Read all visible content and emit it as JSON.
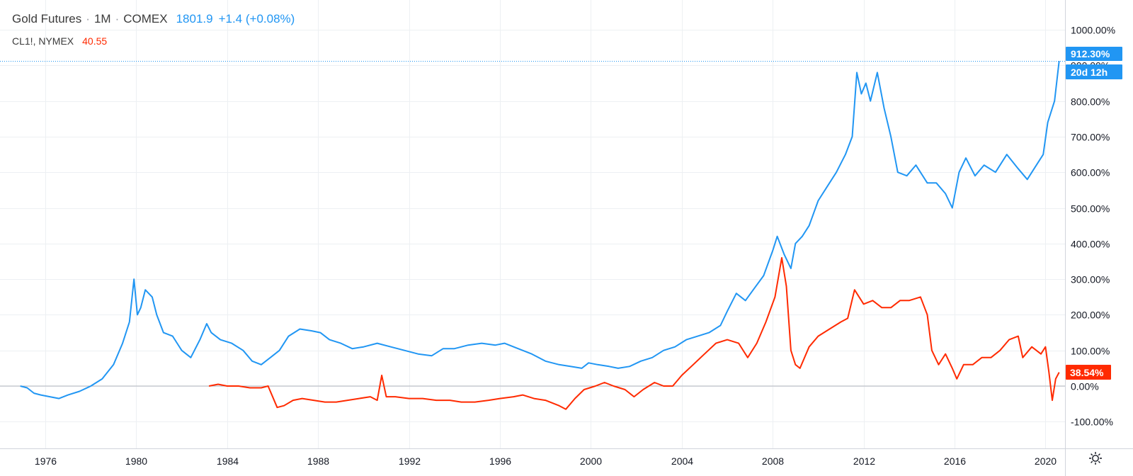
{
  "legend": {
    "main": {
      "symbol": "Gold Futures",
      "interval": "1M",
      "exchange": "COMEX",
      "price": "1801.9",
      "change": "+1.4 (+0.08%)"
    },
    "compare": {
      "symbol": "CL1!, NYMEX",
      "price": "40.55"
    }
  },
  "price_axis_labels": {
    "gold_pct": "912.30%",
    "countdown": "20d 12h",
    "crude_pct": "38.54%"
  },
  "colors": {
    "gold": "#2196f3",
    "crude": "#ff2a00",
    "grid": "#edf0f3",
    "axis_text": "#131722"
  },
  "icons": {
    "settings": "gear-icon"
  },
  "chart_data": {
    "type": "line",
    "title": "",
    "xlabel": "",
    "ylabel": "",
    "x_ticks": [
      "1976",
      "1980",
      "1984",
      "1988",
      "1992",
      "1996",
      "2000",
      "2004",
      "2008",
      "2012",
      "2016",
      "2020"
    ],
    "y_ticks": [
      "1000.00%",
      "900.00%",
      "800.00%",
      "700.00%",
      "600.00%",
      "500.00%",
      "400.00%",
      "300.00%",
      "200.00%",
      "100.00%",
      "0.00%",
      "-100.00%"
    ],
    "xlim": [
      1974.9,
      2021.0
    ],
    "ylim": [
      -130,
      1050
    ],
    "y_unit": "%",
    "grid": true,
    "series": [
      {
        "name": "Gold Futures",
        "color": "#2196f3",
        "x": [
          1974.9,
          1975.2,
          1975.5,
          1975.8,
          1976.2,
          1976.6,
          1977.0,
          1977.5,
          1978.0,
          1978.5,
          1979.0,
          1979.4,
          1979.7,
          1979.9,
          1980.05,
          1980.2,
          1980.4,
          1980.7,
          1980.9,
          1981.2,
          1981.6,
          1982.0,
          1982.4,
          1982.8,
          1983.1,
          1983.3,
          1983.7,
          1984.2,
          1984.7,
          1985.1,
          1985.5,
          1985.9,
          1986.3,
          1986.7,
          1987.2,
          1987.7,
          1988.1,
          1988.5,
          1989.0,
          1989.5,
          1990.0,
          1990.6,
          1991.2,
          1991.8,
          1992.4,
          1993.0,
          1993.5,
          1994.0,
          1994.6,
          1995.2,
          1995.8,
          1996.2,
          1996.8,
          1997.4,
          1998.0,
          1998.6,
          1999.1,
          1999.6,
          1999.9,
          2000.3,
          2000.8,
          2001.2,
          2001.7,
          2002.2,
          2002.7,
          2003.2,
          2003.7,
          2004.2,
          2004.7,
          2005.2,
          2005.7,
          2006.0,
          2006.4,
          2006.8,
          2007.2,
          2007.6,
          2008.0,
          2008.2,
          2008.5,
          2008.8,
          2009.0,
          2009.3,
          2009.6,
          2010.0,
          2010.4,
          2010.8,
          2011.2,
          2011.5,
          2011.7,
          2011.9,
          2012.1,
          2012.3,
          2012.6,
          2012.9,
          2013.2,
          2013.5,
          2013.9,
          2014.3,
          2014.8,
          2015.2,
          2015.6,
          2015.9,
          2016.2,
          2016.5,
          2016.9,
          2017.3,
          2017.8,
          2018.3,
          2018.8,
          2019.2,
          2019.6,
          2019.9,
          2020.1,
          2020.4,
          2020.6
        ],
        "values": [
          0,
          -5,
          -20,
          -25,
          -30,
          -35,
          -25,
          -15,
          0,
          20,
          60,
          120,
          180,
          300,
          200,
          220,
          270,
          250,
          200,
          150,
          140,
          100,
          80,
          130,
          175,
          150,
          130,
          120,
          100,
          70,
          60,
          80,
          100,
          140,
          160,
          155,
          150,
          130,
          120,
          105,
          110,
          120,
          110,
          100,
          90,
          85,
          105,
          105,
          115,
          120,
          115,
          120,
          105,
          90,
          70,
          60,
          55,
          50,
          65,
          60,
          55,
          50,
          55,
          70,
          80,
          100,
          110,
          130,
          140,
          150,
          170,
          210,
          260,
          240,
          275,
          310,
          380,
          420,
          370,
          330,
          400,
          420,
          450,
          520,
          560,
          600,
          650,
          700,
          880,
          820,
          850,
          800,
          880,
          780,
          700,
          600,
          590,
          620,
          570,
          570,
          540,
          500,
          600,
          640,
          590,
          620,
          600,
          650,
          610,
          580,
          620,
          650,
          740,
          800,
          912.3
        ]
      },
      {
        "name": "CL1!, NYMEX",
        "color": "#ff2a00",
        "x": [
          1983.2,
          1983.6,
          1984.0,
          1984.5,
          1985.0,
          1985.5,
          1985.8,
          1986.2,
          1986.5,
          1986.9,
          1987.3,
          1987.8,
          1988.3,
          1988.8,
          1989.3,
          1989.8,
          1990.3,
          1990.6,
          1990.8,
          1991.0,
          1991.4,
          1992.0,
          1992.6,
          1993.2,
          1993.8,
          1994.3,
          1994.9,
          1995.5,
          1996.0,
          1996.6,
          1997.0,
          1997.5,
          1998.0,
          1998.6,
          1998.9,
          1999.3,
          1999.7,
          2000.2,
          2000.6,
          2001.0,
          2001.5,
          2001.9,
          2002.3,
          2002.8,
          2003.2,
          2003.6,
          2004.0,
          2004.5,
          2005.0,
          2005.5,
          2006.0,
          2006.5,
          2006.9,
          2007.3,
          2007.7,
          2008.1,
          2008.4,
          2008.6,
          2008.8,
          2009.0,
          2009.2,
          2009.6,
          2010.0,
          2010.5,
          2011.0,
          2011.3,
          2011.6,
          2012.0,
          2012.4,
          2012.8,
          2013.2,
          2013.6,
          2014.0,
          2014.5,
          2014.8,
          2015.0,
          2015.3,
          2015.6,
          2015.9,
          2016.1,
          2016.4,
          2016.8,
          2017.2,
          2017.6,
          2018.0,
          2018.4,
          2018.8,
          2019.0,
          2019.4,
          2019.8,
          2020.0,
          2020.15,
          2020.3,
          2020.45,
          2020.6
        ],
        "values": [
          0,
          5,
          0,
          0,
          -5,
          -5,
          0,
          -60,
          -55,
          -40,
          -35,
          -40,
          -45,
          -45,
          -40,
          -35,
          -30,
          -40,
          30,
          -30,
          -30,
          -35,
          -35,
          -40,
          -40,
          -45,
          -45,
          -40,
          -35,
          -30,
          -25,
          -35,
          -40,
          -55,
          -65,
          -35,
          -10,
          0,
          10,
          0,
          -10,
          -30,
          -10,
          10,
          0,
          0,
          30,
          60,
          90,
          120,
          130,
          120,
          80,
          120,
          180,
          250,
          360,
          280,
          100,
          60,
          50,
          110,
          140,
          160,
          180,
          190,
          270,
          230,
          240,
          220,
          220,
          240,
          240,
          250,
          200,
          100,
          60,
          90,
          50,
          20,
          60,
          60,
          80,
          80,
          100,
          130,
          140,
          80,
          110,
          90,
          110,
          40,
          -40,
          20,
          38.54
        ]
      }
    ]
  }
}
